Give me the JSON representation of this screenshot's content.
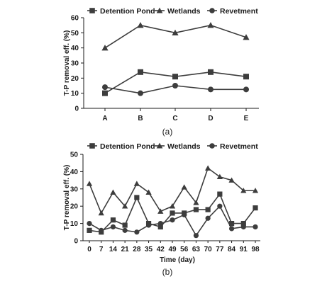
{
  "chart_data": [
    {
      "panel_label": "(a)",
      "type": "line",
      "categories": [
        "A",
        "B",
        "C",
        "D",
        "E"
      ],
      "ylabel": "T-P removal eff. (%)",
      "xlabel": "",
      "ylim": [
        0,
        60
      ],
      "yticks": [
        0,
        10,
        20,
        30,
        40,
        50,
        60
      ],
      "legend_position": "top",
      "series": [
        {
          "name": "Detention Pond",
          "marker": "square",
          "values": [
            10,
            24,
            21,
            24,
            21
          ]
        },
        {
          "name": "Wetlands",
          "marker": "triangle",
          "values": [
            40,
            55,
            50,
            55,
            47
          ]
        },
        {
          "name": "Revetment",
          "marker": "circle",
          "values": [
            14,
            10,
            15,
            12.5,
            12.5
          ]
        }
      ]
    },
    {
      "panel_label": "(b)",
      "type": "line",
      "x": [
        0,
        7,
        14,
        21,
        28,
        35,
        42,
        49,
        56,
        63,
        70,
        77,
        84,
        91,
        98
      ],
      "xlabel": "Time (day)",
      "ylabel": "T-P removal eff. (%)",
      "ylim": [
        0,
        50
      ],
      "yticks": [
        0,
        10,
        20,
        30,
        40,
        50
      ],
      "legend_position": "top",
      "series": [
        {
          "name": "Detention Pond",
          "marker": "square",
          "values": [
            6,
            5,
            12,
            9,
            25,
            10,
            8,
            16,
            16,
            18,
            18,
            27,
            10,
            10,
            19
          ]
        },
        {
          "name": "Wetlands",
          "marker": "triangle",
          "values": [
            33,
            16,
            28,
            20,
            33,
            28,
            17,
            20,
            31,
            22,
            42,
            37,
            35,
            29,
            29
          ]
        },
        {
          "name": "Revetment",
          "marker": "circle",
          "values": [
            10,
            6,
            8,
            6,
            5,
            9,
            10,
            12,
            15,
            3,
            13,
            20,
            7,
            8,
            8
          ]
        }
      ]
    }
  ],
  "colors": {
    "series": [
      "#3d3d3d",
      "#3d3d3d",
      "#3d3d3d"
    ],
    "axis": "#1a1a1a"
  }
}
